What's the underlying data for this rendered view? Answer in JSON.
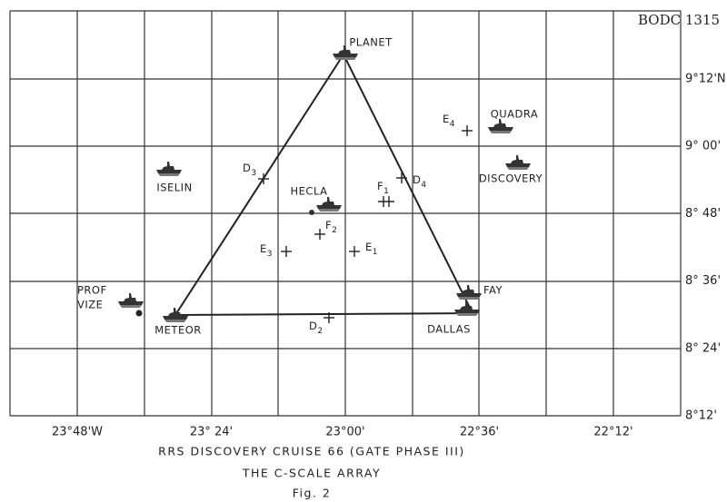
{
  "figure_id": "BODC 1315",
  "longitude_labels": [
    "23°48'W",
    "23° 24'",
    "23°00'",
    "22°36'",
    "22°12'"
  ],
  "latitude_labels": [
    "9°12'N",
    "9° 00'",
    "8° 48'",
    "8° 36'",
    "8° 24'",
    "8°12'"
  ],
  "ships": [
    {
      "name": [
        "PLANET"
      ]
    },
    {
      "name": [
        "QUADRA"
      ]
    },
    {
      "name": [
        "DISCOVERY"
      ]
    },
    {
      "name": [
        "ISELIN"
      ]
    },
    {
      "name": [
        "HECLA"
      ]
    },
    {
      "name": [
        "FAY"
      ]
    },
    {
      "name": [
        "DALLAS"
      ]
    },
    {
      "name": [
        "METEOR"
      ]
    },
    {
      "name": [
        "PROF",
        "VIZE"
      ]
    }
  ],
  "stations": [
    {
      "label": "E",
      "sub": "4"
    },
    {
      "label": "D",
      "sub": "3"
    },
    {
      "label": "F",
      "sub": "1"
    },
    {
      "label": "D",
      "sub": "4"
    },
    {
      "label": "F",
      "sub": "2"
    },
    {
      "label": "E",
      "sub": "3"
    },
    {
      "label": "E",
      "sub": "1"
    },
    {
      "label": "D",
      "sub": "2"
    }
  ],
  "caption": [
    "RRS DISCOVERY CRUISE 66 (GATE PHASE III)",
    "THE C-SCALE ARRAY",
    "Fig. 2"
  ]
}
